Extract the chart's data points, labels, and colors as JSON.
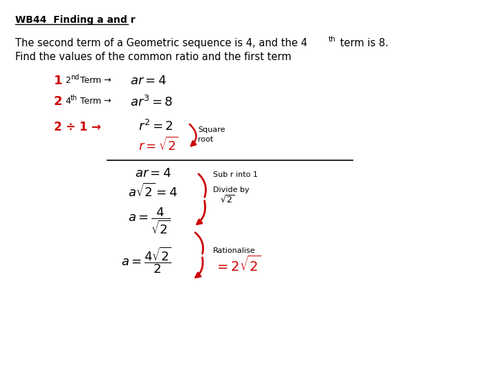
{
  "bg_color": "#ffffff",
  "black": "#000000",
  "red": "#cc0000",
  "figsize": [
    7.2,
    5.4
  ],
  "dpi": 100,
  "title": "WB44  Finding a and r",
  "line1": "The second term of a Geometric sequence is 4, and the 4",
  "line1b": " term is 8.",
  "line2": "Find the values of the common ratio and the first term"
}
